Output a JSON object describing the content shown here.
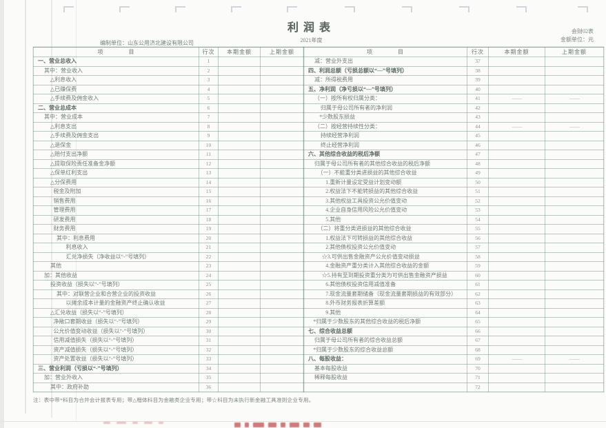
{
  "page": {
    "title": "利润表",
    "form_code": "会财02表",
    "unit_note": "金额单位：元",
    "period": "2021年度",
    "prepared_by": "编制单位：山东公用济北建设有限公司",
    "footnote": "注：表中带*科目为合并会计报表专用；带△楷体科目为金融类企业专用；带☆科目为未执行新金融工具准则企业专用。",
    "colors": {
      "paper": "#fbfbf9",
      "grid_line": "#7a9288",
      "text": "#6f7a74",
      "red_stamp": "#c25050"
    }
  },
  "table": {
    "headers": {
      "item": "项　　　　目",
      "line": "行次",
      "current": "本期金额",
      "prior": "上期金额"
    },
    "left_rows": [
      {
        "item": "一、营业总收入",
        "no": "1",
        "indent": 0,
        "bold": true,
        "cur": "",
        "pri": ""
      },
      {
        "item": "其中：营业收入",
        "no": "2",
        "indent": 1,
        "cur": "",
        "pri": ""
      },
      {
        "item": "△利息收入",
        "no": "3",
        "indent": 2,
        "cur": "",
        "pri": ""
      },
      {
        "item": "△已赚保费",
        "no": "4",
        "indent": 2,
        "cur": "",
        "pri": ""
      },
      {
        "item": "△手续费及佣金收入",
        "no": "5",
        "indent": 2,
        "cur": "",
        "pri": ""
      },
      {
        "item": "二、营业总成本",
        "no": "6",
        "indent": 0,
        "bold": true,
        "cur": "",
        "pri": ""
      },
      {
        "item": "其中：营业成本",
        "no": "7",
        "indent": 1,
        "cur": "",
        "pri": ""
      },
      {
        "item": "△利息支出",
        "no": "8",
        "indent": 2,
        "cur": "",
        "pri": ""
      },
      {
        "item": "△手续费及佣金支出",
        "no": "9",
        "indent": 2,
        "cur": "",
        "pri": ""
      },
      {
        "item": "△退保金",
        "no": "10",
        "indent": 2,
        "cur": "",
        "pri": ""
      },
      {
        "item": "△赔付支出净额",
        "no": "11",
        "indent": 2,
        "cur": "",
        "pri": ""
      },
      {
        "item": "△提取保险责任准备金净额",
        "no": "12",
        "indent": 2,
        "cur": "",
        "pri": ""
      },
      {
        "item": "△保单红利支出",
        "no": "13",
        "indent": 2,
        "cur": "",
        "pri": ""
      },
      {
        "item": "△分保费用",
        "no": "14",
        "indent": 2,
        "cur": "",
        "pri": ""
      },
      {
        "item": "税金及附加",
        "no": "15",
        "indent": 2.5,
        "cur": "",
        "pri": ""
      },
      {
        "item": "销售费用",
        "no": "16",
        "indent": 2.5,
        "cur": "",
        "pri": ""
      },
      {
        "item": "管理费用",
        "no": "17",
        "indent": 2.5,
        "cur": "",
        "pri": ""
      },
      {
        "item": "研发费用",
        "no": "18",
        "indent": 2.5,
        "cur": "",
        "pri": ""
      },
      {
        "item": "财务费用",
        "no": "19",
        "indent": 2.5,
        "cur": "",
        "pri": ""
      },
      {
        "item": "其中：利息费用",
        "no": "20",
        "indent": 3,
        "cur": "",
        "pri": ""
      },
      {
        "item": "利息收入",
        "no": "21",
        "indent": 4.5,
        "cur": "",
        "pri": ""
      },
      {
        "item": "汇兑净损失（净收益以“-”号填列）",
        "no": "22",
        "indent": 4.5,
        "cur": "",
        "pri": ""
      },
      {
        "item": "其他",
        "no": "23",
        "indent": 2,
        "cur": "",
        "pri": ""
      },
      {
        "item": "加：其他收益",
        "no": "24",
        "indent": 1,
        "cur": "",
        "pri": ""
      },
      {
        "item": "投资收益（损失以“-”号填列）",
        "no": "25",
        "indent": 2,
        "cur": "",
        "pri": ""
      },
      {
        "item": "其中：对联营企业和合营企业的投资收益",
        "no": "26",
        "indent": 3,
        "cur": "",
        "pri": ""
      },
      {
        "item": "以摊余成本计量的金融资产终止确认收益",
        "no": "27",
        "indent": 4.5,
        "cur": "",
        "pri": ""
      },
      {
        "item": "△汇兑收益（损失以“-”号填列）",
        "no": "28",
        "indent": 2,
        "cur": "",
        "pri": ""
      },
      {
        "item": "净敞口套期收益（损失以“-”号填列）",
        "no": "29",
        "indent": 2.5,
        "cur": "",
        "pri": ""
      },
      {
        "item": "公允价值变动收益（损失以“-”号填列）",
        "no": "30",
        "indent": 2.5,
        "cur": "",
        "pri": ""
      },
      {
        "item": "信用减值损失（损失以“-”号填列）",
        "no": "31",
        "indent": 2.5,
        "cur": "",
        "pri": ""
      },
      {
        "item": "资产减值损失（损失以“-”号填列）",
        "no": "32",
        "indent": 2.5,
        "cur": "",
        "pri": ""
      },
      {
        "item": "资产处置收益（损失以“-”号填列）",
        "no": "33",
        "indent": 2.5,
        "cur": "",
        "pri": ""
      },
      {
        "item": "三、营业利润（亏损以“-”号填列）",
        "no": "34",
        "indent": 0,
        "bold": true,
        "cur": "",
        "pri": ""
      },
      {
        "item": "加：营业外收入",
        "no": "35",
        "indent": 1,
        "cur": "",
        "pri": ""
      },
      {
        "item": "其中：政府补助",
        "no": "36",
        "indent": 2,
        "cur": "",
        "pri": ""
      }
    ],
    "right_rows": [
      {
        "item": "减：营业外支出",
        "no": "37",
        "indent": 1,
        "cur": "",
        "pri": ""
      },
      {
        "item": "四、利润总额（亏损总额以“—”号填列）",
        "no": "38",
        "indent": 0,
        "bold": true,
        "cur": "",
        "pri": ""
      },
      {
        "item": "减：所得税费用",
        "no": "39",
        "indent": 1,
        "cur": "",
        "pri": ""
      },
      {
        "item": "五、净利润（净亏损以“—”号填列）",
        "no": "40",
        "indent": 0,
        "bold": true,
        "cur": "",
        "pri": ""
      },
      {
        "item": "（一）按所有权归属分类：",
        "no": "41",
        "indent": 1,
        "cur": "——",
        "pri": "——"
      },
      {
        "item": "归属于母公司所有者的净利润",
        "no": "42",
        "indent": 2,
        "cur": "",
        "pri": ""
      },
      {
        "item": "*少数股东损益",
        "no": "43",
        "indent": 1.8,
        "cur": "",
        "pri": ""
      },
      {
        "item": "（二）按经营持续性分类：",
        "no": "44",
        "indent": 1,
        "cur": "——",
        "pri": "——"
      },
      {
        "item": "持续经营净利润",
        "no": "45",
        "indent": 2,
        "cur": "",
        "pri": ""
      },
      {
        "item": "终止经营净利润",
        "no": "46",
        "indent": 2,
        "cur": "",
        "pri": ""
      },
      {
        "item": "六、其他综合收益的税后净额",
        "no": "47",
        "indent": 0,
        "bold": true,
        "cur": "",
        "pri": ""
      },
      {
        "item": "归属于母公司所有者的其他综合收益的税后净额",
        "no": "48",
        "indent": 1,
        "cur": "",
        "pri": ""
      },
      {
        "item": "（一）不能重分类进损益的其他综合收益",
        "no": "49",
        "indent": 1.5,
        "cur": "",
        "pri": ""
      },
      {
        "item": "1.重新计量设定受益计划变动额",
        "no": "50",
        "indent": 2.8,
        "cur": "",
        "pri": ""
      },
      {
        "item": "2.权益法下不能转损益的其他综合收益",
        "no": "51",
        "indent": 2.8,
        "cur": "",
        "pri": ""
      },
      {
        "item": "3.其他权益工具投资公允价值变动",
        "no": "52",
        "indent": 2.8,
        "cur": "",
        "pri": ""
      },
      {
        "item": "4.企业自身信用风险公允价值变动",
        "no": "53",
        "indent": 2.8,
        "cur": "",
        "pri": ""
      },
      {
        "item": "5.其他",
        "no": "54",
        "indent": 2.8,
        "cur": "",
        "pri": ""
      },
      {
        "item": "（二）将重分类进损益的其他综合收益",
        "no": "55",
        "indent": 1.5,
        "cur": "",
        "pri": ""
      },
      {
        "item": "1.权益法下可转损益的其他综合收益",
        "no": "56",
        "indent": 2.8,
        "cur": "",
        "pri": ""
      },
      {
        "item": "2.其他债权投资公允价值变动",
        "no": "57",
        "indent": 2.8,
        "cur": "",
        "pri": ""
      },
      {
        "item": "☆3.可供出售金融资产公允价值变动损益",
        "no": "58",
        "indent": 2.2,
        "cur": "",
        "pri": ""
      },
      {
        "item": "4.金融资产重分类计入其他综合收益的金额",
        "no": "59",
        "indent": 2.8,
        "cur": "",
        "pri": ""
      },
      {
        "item": "☆5.持有至到期投资重分类为可供出售金融资产损益",
        "no": "60",
        "indent": 2.2,
        "cur": "",
        "pri": ""
      },
      {
        "item": "6.其他债权投资信用减值准备",
        "no": "61",
        "indent": 2.8,
        "cur": "",
        "pri": ""
      },
      {
        "item": "7.现金流量套期储备（现金流量套期损益的有效部分）",
        "no": "62",
        "indent": 2.8,
        "cur": "",
        "pri": ""
      },
      {
        "item": "8.外币财务报表折算差额",
        "no": "63",
        "indent": 2.8,
        "cur": "",
        "pri": ""
      },
      {
        "item": "9.其他",
        "no": "64",
        "indent": 2.8,
        "cur": "",
        "pri": ""
      },
      {
        "item": "*归属于少数股东的其他综合收益的税后净额",
        "no": "65",
        "indent": 0.8,
        "cur": "",
        "pri": ""
      },
      {
        "item": "七、综合收益总额",
        "no": "66",
        "indent": 0,
        "bold": true,
        "cur": "",
        "pri": ""
      },
      {
        "item": "归属于母公司所有者的综合收益总额",
        "no": "67",
        "indent": 1,
        "cur": "",
        "pri": ""
      },
      {
        "item": "*归属于少数股东的综合收益总额",
        "no": "68",
        "indent": 0.8,
        "cur": "",
        "pri": ""
      },
      {
        "item": "八、每股收益：",
        "no": "69",
        "indent": 0,
        "bold": true,
        "cur": "——",
        "pri": "——"
      },
      {
        "item": "基本每股收益",
        "no": "70",
        "indent": 1,
        "cur": "",
        "pri": ""
      },
      {
        "item": "稀释每股收益",
        "no": "71",
        "indent": 1,
        "cur": "",
        "pri": ""
      },
      {
        "item": "",
        "no": "72",
        "indent": 0,
        "cur": "",
        "pri": ""
      }
    ]
  }
}
